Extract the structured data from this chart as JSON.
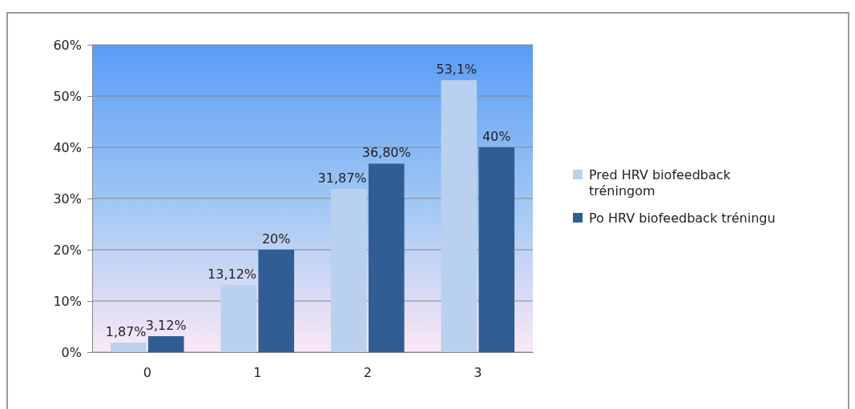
{
  "chart_data": {
    "type": "bar",
    "categories": [
      "0",
      "1",
      "2",
      "3"
    ],
    "series": [
      {
        "name": "Pred HRV biofeedback tréningom",
        "color": "#b9d1ee",
        "values": [
          1.87,
          13.12,
          31.87,
          53.1
        ],
        "value_labels": [
          "1,87%",
          "13,12%",
          "31,87%",
          "53,1%"
        ]
      },
      {
        "name": "Po HRV biofeedback tréningu",
        "color": "#2f5d94",
        "values": [
          3.12,
          20,
          36.8,
          40
        ],
        "value_labels": [
          "3,12%",
          "20%",
          "36,80%",
          "40%"
        ]
      }
    ],
    "ylim": [
      0,
      60
    ],
    "yticks": [
      {
        "value": 0,
        "label": "0%"
      },
      {
        "value": 10,
        "label": "10%"
      },
      {
        "value": 20,
        "label": "20%"
      },
      {
        "value": 30,
        "label": "30%"
      },
      {
        "value": 40,
        "label": "40%"
      },
      {
        "value": 50,
        "label": "50%"
      },
      {
        "value": 60,
        "label": "60%"
      }
    ],
    "grid": "y",
    "legend": "right"
  }
}
